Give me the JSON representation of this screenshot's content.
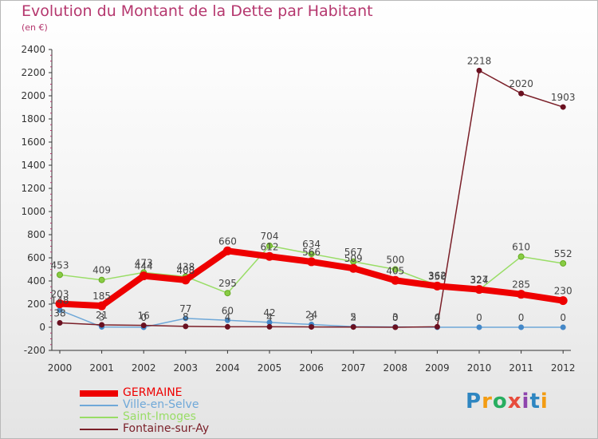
{
  "title": "Evolution du Montant de la Dette par Habitant",
  "subtitle": "(en €)",
  "logo": "Proxiti",
  "chart_data": {
    "type": "line",
    "title": "Evolution du Montant de la Dette par Habitant",
    "ylabel": "(en €)",
    "xlabel": "",
    "categories": [
      "2000",
      "2001",
      "2002",
      "2003",
      "2004",
      "2005",
      "2006",
      "2007",
      "2008",
      "2009",
      "2010",
      "2011",
      "2012"
    ],
    "ylim": [
      -200,
      2400
    ],
    "yticks": [
      -200,
      0,
      200,
      400,
      600,
      800,
      1000,
      1200,
      1400,
      1600,
      1800,
      2000,
      2200,
      2400
    ],
    "grid": false,
    "legend_position": "bottom-left",
    "series": [
      {
        "name": "GERMAINE",
        "color": "#ee0000",
        "values": [
          203,
          185,
          444,
          408,
          660,
          612,
          566,
          509,
          405,
          356,
          327,
          285,
          230
        ]
      },
      {
        "name": "Ville-en-Selve",
        "color": "#6fa8d8",
        "values": [
          148,
          3,
          0,
          77,
          60,
          42,
          24,
          5,
          3,
          0,
          0,
          0,
          0
        ]
      },
      {
        "name": "Saint-Imoges",
        "color": "#99dd66",
        "values": [
          453,
          409,
          473,
          438,
          295,
          704,
          634,
          567,
          500,
          362,
          324,
          610,
          552
        ]
      },
      {
        "name": "Fontaine-sur-Ay",
        "color": "#7a1f28",
        "values": [
          38,
          21,
          16,
          8,
          4,
          4,
          3,
          2,
          0,
          4,
          2218,
          2020,
          1903
        ]
      }
    ]
  }
}
